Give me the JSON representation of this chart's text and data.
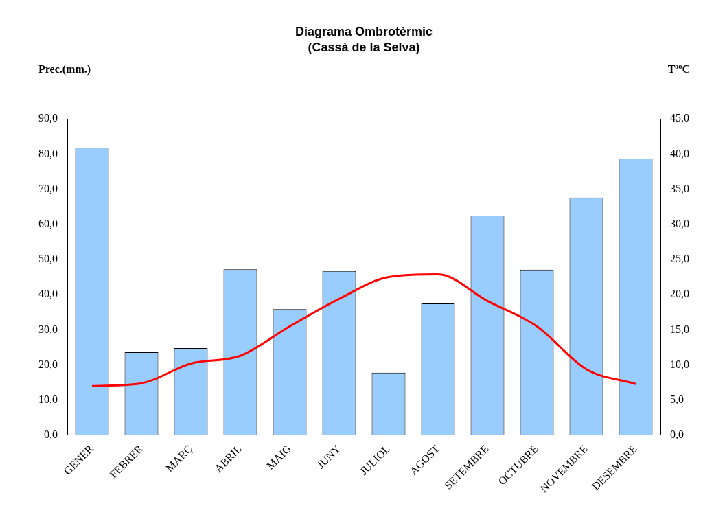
{
  "chart_data": {
    "type": "bar",
    "title": "Diagrama Ombrotèrmic",
    "subtitle": "(Cassà de la Selva)",
    "ylabel": "Prec.(mm.)",
    "y2label": "TªºC",
    "categories": [
      "GENER",
      "FEBRER",
      "MARÇ",
      "ABRIL",
      "MAIG",
      "JUNY",
      "JULIOL",
      "AGOST",
      "SETEMBRE",
      "OCTUBRE",
      "NOVEMBRE",
      "DESEMBRE"
    ],
    "series": [
      {
        "color": "#99ccff",
        "values": [
          81.8,
          23.6,
          24.8,
          47.2,
          35.9,
          46.7,
          17.8,
          37.5,
          62.5,
          47.1,
          67.6,
          78.7
        ]
      },
      {
        "type": "line",
        "axis": "y2",
        "color": "#ff0000",
        "values": [
          7.0,
          7.4,
          10.2,
          11.3,
          15.5,
          19.4,
          22.5,
          22.9,
          19.1,
          15.5,
          9.4,
          7.3
        ]
      }
    ],
    "ylim": [
      0,
      90
    ],
    "yticks": [
      {
        "value": 0,
        "label": "0,0"
      },
      {
        "value": 10,
        "label": "10,0"
      },
      {
        "value": 20,
        "label": "20,0"
      },
      {
        "value": 30,
        "label": "30,0"
      },
      {
        "value": 40,
        "label": "40,0"
      },
      {
        "value": 50,
        "label": "50,0"
      },
      {
        "value": 60,
        "label": "60,0"
      },
      {
        "value": 70,
        "label": "70,0"
      },
      {
        "value": 80,
        "label": "80,0"
      },
      {
        "value": 90,
        "label": "90,0"
      }
    ],
    "y2lim": [
      0,
      45
    ],
    "y2ticks": [
      {
        "value": 0,
        "label": "0,0"
      },
      {
        "value": 5,
        "label": "5,0"
      },
      {
        "value": 10,
        "label": "10,0"
      },
      {
        "value": 15,
        "label": "15,0"
      },
      {
        "value": 20,
        "label": "20,0"
      },
      {
        "value": 25,
        "label": "25,0"
      },
      {
        "value": 30,
        "label": "30,0"
      },
      {
        "value": 35,
        "label": "35,0"
      },
      {
        "value": 40,
        "label": "40,0"
      },
      {
        "value": 45,
        "label": "45,0"
      }
    ],
    "grid": false,
    "legend": false,
    "marker": "none",
    "line_style": "solid"
  }
}
